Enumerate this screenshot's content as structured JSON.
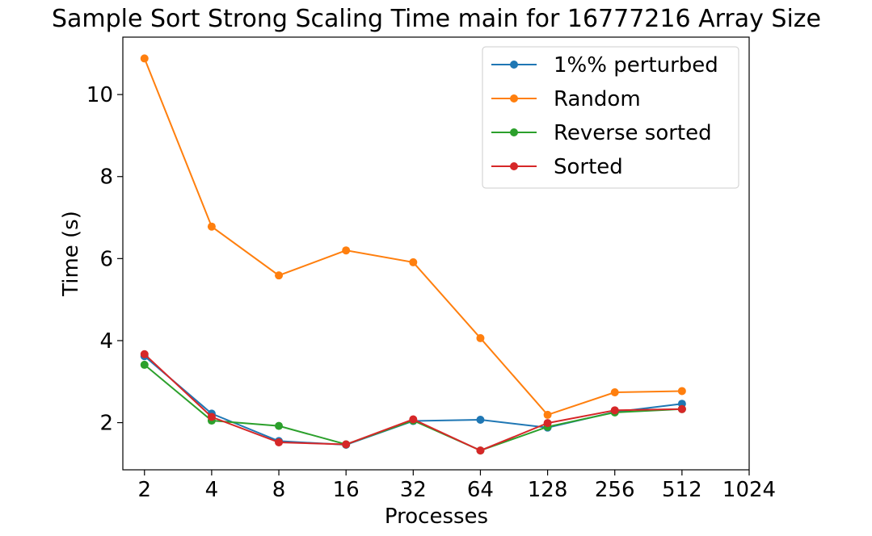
{
  "chart_data": {
    "type": "line",
    "title": "Sample Sort Strong Scaling Time main for 16777216 Array Size",
    "xlabel": "Processes",
    "ylabel": "Time (s)",
    "x_scale": "log2",
    "x": [
      2,
      4,
      8,
      16,
      32,
      64,
      128,
      256,
      512
    ],
    "x_ticks": [
      "2",
      "4",
      "8",
      "16",
      "32",
      "64",
      "128",
      "256",
      "512",
      "1024"
    ],
    "y_ticks": [
      "2",
      "4",
      "6",
      "8",
      "10"
    ],
    "xlim": [
      1.6,
      1024
    ],
    "ylim": [
      0.85,
      11.4
    ],
    "legend_position": "upper right",
    "grid": false,
    "series": [
      {
        "name": "1%% perturbed",
        "color": "#1f77b4",
        "values": [
          3.62,
          2.22,
          1.55,
          1.46,
          2.04,
          2.07,
          1.88,
          2.26,
          2.46
        ]
      },
      {
        "name": "Random",
        "color": "#ff7f0e",
        "values": [
          10.88,
          6.78,
          5.59,
          6.2,
          5.91,
          4.06,
          2.19,
          2.74,
          2.77
        ]
      },
      {
        "name": "Reverse sorted",
        "color": "#2ca02c",
        "values": [
          3.41,
          2.05,
          1.92,
          1.47,
          2.05,
          1.32,
          1.9,
          2.25,
          2.33
        ]
      },
      {
        "name": "Sorted",
        "color": "#d62728",
        "values": [
          3.67,
          2.14,
          1.52,
          1.47,
          2.08,
          1.32,
          1.99,
          2.3,
          2.33
        ]
      }
    ]
  }
}
